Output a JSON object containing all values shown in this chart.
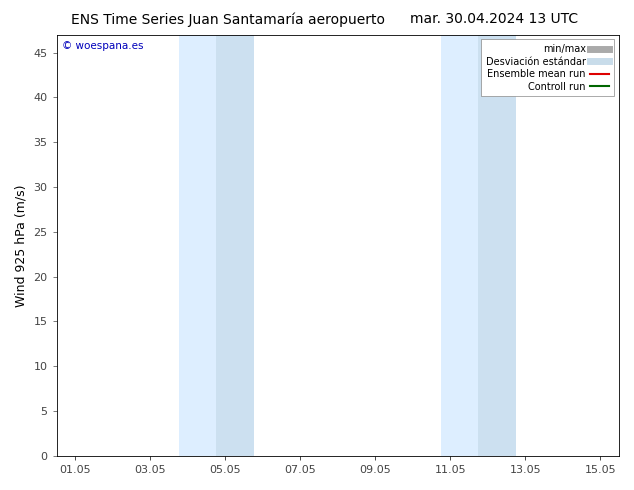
{
  "title_left": "ENS Time Series Juan Santamaría aeropuerto",
  "title_right": "mar. 30.04.2024 13 UTC",
  "ylabel": "Wind 925 hPa (m/s)",
  "watermark": "© woespana.es",
  "background_color": "#ffffff",
  "plot_bg_color": "#ffffff",
  "ylim": [
    0,
    47
  ],
  "yticks": [
    0,
    5,
    10,
    15,
    20,
    25,
    30,
    35,
    40,
    45
  ],
  "xlim_start": 0.5,
  "xlim_end": 15.5,
  "xtick_labels": [
    "01.05",
    "03.05",
    "05.05",
    "07.05",
    "09.05",
    "11.05",
    "13.05",
    "15.05"
  ],
  "xtick_positions": [
    1,
    3,
    5,
    7,
    9,
    11,
    13,
    15
  ],
  "shaded_regions": [
    {
      "x_start": 3.75,
      "x_end": 4.75,
      "color": "#ddeeff",
      "alpha": 1.0
    },
    {
      "x_start": 4.75,
      "x_end": 5.75,
      "color": "#cce0f0",
      "alpha": 1.0
    },
    {
      "x_start": 10.75,
      "x_end": 11.75,
      "color": "#ddeeff",
      "alpha": 1.0
    },
    {
      "x_start": 11.75,
      "x_end": 12.75,
      "color": "#cce0f0",
      "alpha": 1.0
    }
  ],
  "legend_entries": [
    {
      "label": "min/max",
      "color": "#aaaaaa",
      "linestyle": "-",
      "linewidth": 5
    },
    {
      "label": "Desviación estándar",
      "color": "#c8dcea",
      "linestyle": "-",
      "linewidth": 5
    },
    {
      "label": "Ensemble mean run",
      "color": "#dd0000",
      "linestyle": "-",
      "linewidth": 1.5
    },
    {
      "label": "Controll run",
      "color": "#006600",
      "linestyle": "-",
      "linewidth": 1.5
    }
  ],
  "title_fontsize": 10,
  "axis_label_fontsize": 9,
  "tick_fontsize": 8,
  "watermark_color": "#0000bb",
  "border_color": "#000000",
  "tick_color": "#444444"
}
